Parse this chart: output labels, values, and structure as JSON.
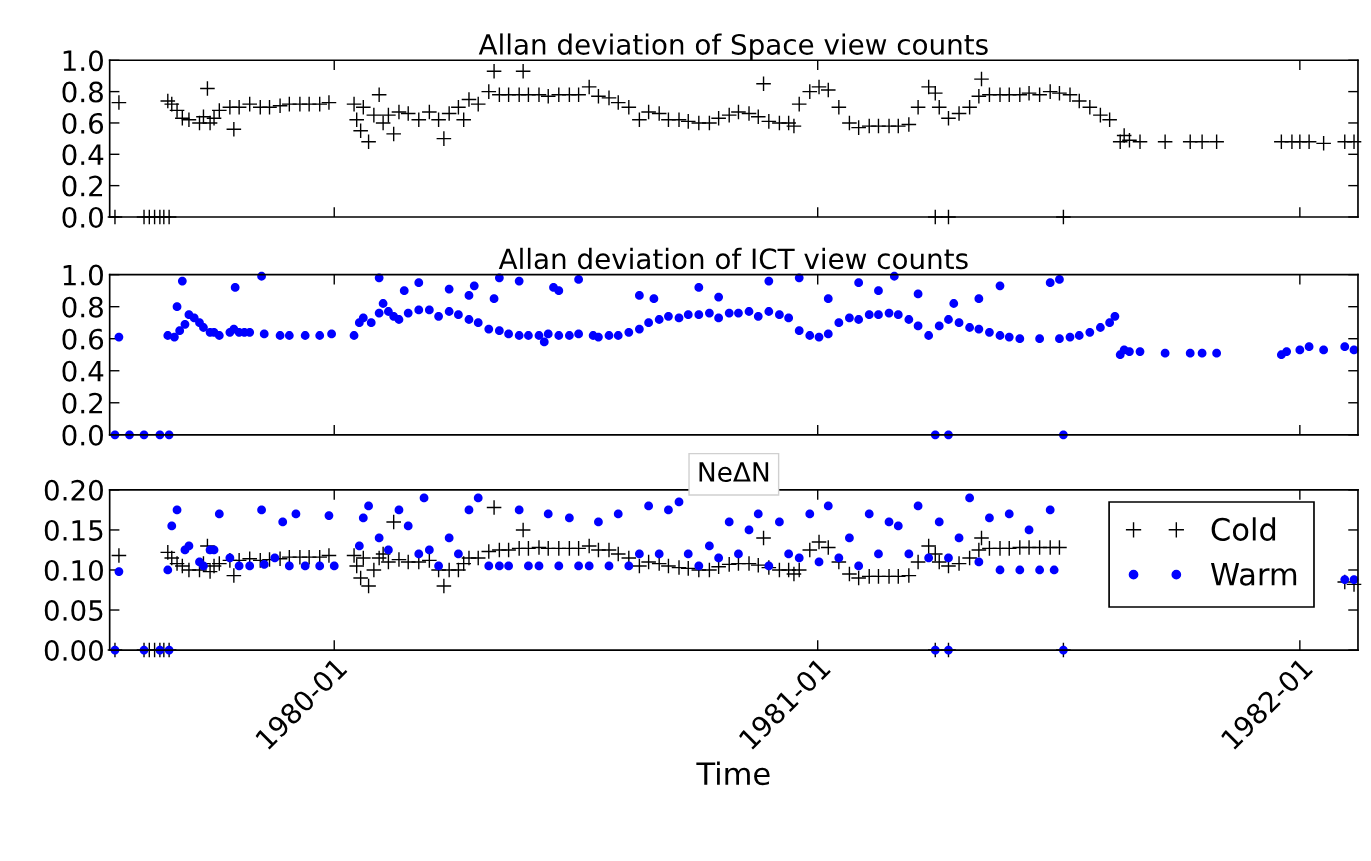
{
  "chart_data": [
    {
      "type": "scatter",
      "title": "Allan deviation of Space view counts",
      "tick_labels": "y",
      "grid": false,
      "xlim": [
        "1979-07-15",
        "1982-02-14"
      ],
      "xticks": [
        {
          "value": "1980-01",
          "label": null
        },
        {
          "value": "1981-01",
          "label": null
        },
        {
          "value": "1982-01",
          "label": null
        }
      ],
      "ylim": [
        0,
        1
      ],
      "yticks": [
        {
          "value": 0,
          "label": "0.0"
        },
        {
          "value": 0.2,
          "label": "0.2"
        },
        {
          "value": 0.4,
          "label": "0.4"
        },
        {
          "value": 0.6,
          "label": "0.6"
        },
        {
          "value": 0.8,
          "label": "0.8"
        },
        {
          "value": 1,
          "label": "1.0"
        }
      ],
      "series": [
        {
          "color": "#000000",
          "marker": "cross",
          "x": [
            "1979-07-19",
            "1979-07-22",
            "1979-08-10",
            "1979-08-14",
            "1979-08-18",
            "1979-08-22",
            "1979-08-25",
            "1979-08-28",
            "1979-08-29",
            "1979-08-31",
            "1979-09-04",
            "1979-09-08",
            "1979-09-13",
            "1979-09-21",
            "1979-09-24",
            "1979-09-27",
            "1979-09-29",
            "1979-10-02",
            "1979-10-06",
            "1979-10-14",
            "1979-10-17",
            "1979-10-21",
            "1979-10-29",
            "1979-11-06",
            "1979-11-13",
            "1979-11-21",
            "1979-11-28",
            "1979-12-06",
            "1979-12-13",
            "1979-12-21",
            "1979-12-28",
            "1980-01-16",
            "1980-01-18",
            "1980-01-21",
            "1980-01-23",
            "1980-01-27",
            "1980-01-31",
            "1980-02-04",
            "1980-02-07",
            "1980-02-11",
            "1980-02-15",
            "1980-02-19",
            "1980-02-26",
            "1980-03-05",
            "1980-03-13",
            "1980-03-20",
            "1980-03-24",
            "1980-03-28",
            "1980-04-04",
            "1980-04-08",
            "1980-04-12",
            "1980-04-19",
            "1980-04-27",
            "1980-05-01",
            "1980-05-05",
            "1980-05-12",
            "1980-05-20",
            "1980-05-23",
            "1980-05-27",
            "1980-06-04",
            "1980-06-11",
            "1980-06-19",
            "1980-06-27",
            "1980-07-04",
            "1980-07-12",
            "1980-07-19",
            "1980-07-27",
            "1980-08-03",
            "1980-08-11",
            "1980-08-19",
            "1980-08-26",
            "1980-09-03",
            "1980-09-10",
            "1980-09-18",
            "1980-09-25",
            "1980-10-03",
            "1980-10-11",
            "1980-10-18",
            "1980-10-26",
            "1980-11-02",
            "1980-11-10",
            "1980-11-17",
            "1980-11-21",
            "1980-11-25",
            "1980-12-03",
            "1980-12-10",
            "1980-12-14",
            "1980-12-18",
            "1980-12-26",
            "1981-01-02",
            "1981-01-09",
            "1981-01-17",
            "1981-01-25",
            "1981-02-01",
            "1981-02-09",
            "1981-02-16",
            "1981-02-24",
            "1981-03-03",
            "1981-03-11",
            "1981-03-18",
            "1981-03-26",
            "1981-03-31",
            "1981-03-31",
            "1981-04-03",
            "1981-04-10",
            "1981-04-10",
            "1981-04-18",
            "1981-04-26",
            "1981-05-03",
            "1981-05-05",
            "1981-05-11",
            "1981-05-19",
            "1981-05-26",
            "1981-06-03",
            "1981-06-10",
            "1981-06-18",
            "1981-06-26",
            "1981-07-03",
            "1981-07-06",
            "1981-07-11",
            "1981-07-18",
            "1981-07-26",
            "1981-08-03",
            "1981-08-10",
            "1981-08-18",
            "1981-08-21",
            "1981-08-25",
            "1981-09-02",
            "1981-09-21",
            "1981-10-10",
            "1981-10-19",
            "1981-10-30",
            "1981-12-18",
            "1981-12-26",
            "1982-01-01",
            "1982-01-08",
            "1982-01-19",
            "1982-02-04",
            "1982-02-11"
          ],
          "values": [
            0,
            0.73,
            0,
            0,
            0,
            0,
            0,
            0.74,
            0,
            0.72,
            0.68,
            0.63,
            0.62,
            0.6,
            0.64,
            0.82,
            0.6,
            0.63,
            0.68,
            0.7,
            0.56,
            0.7,
            0.72,
            0.7,
            0.7,
            0.71,
            0.72,
            0.72,
            0.72,
            0.72,
            0.73,
            0.72,
            0.62,
            0.55,
            0.7,
            0.48,
            0.65,
            0.78,
            0.6,
            0.65,
            0.53,
            0.67,
            0.66,
            0.62,
            0.67,
            0.62,
            0.5,
            0.66,
            0.7,
            0.62,
            0.75,
            0.72,
            0.8,
            0.93,
            0.78,
            0.78,
            0.78,
            0.93,
            0.78,
            0.78,
            0.77,
            0.78,
            0.78,
            0.78,
            0.83,
            0.77,
            0.76,
            0.73,
            0.7,
            0.62,
            0.67,
            0.66,
            0.62,
            0.62,
            0.61,
            0.6,
            0.6,
            0.63,
            0.65,
            0.67,
            0.66,
            0.64,
            0.85,
            0.61,
            0.6,
            0.6,
            0.58,
            0.72,
            0.8,
            0.83,
            0.81,
            0.7,
            0.6,
            0.57,
            0.58,
            0.58,
            0.58,
            0.58,
            0.59,
            0.7,
            0.83,
            0.79,
            0,
            0.7,
            0,
            0.63,
            0.66,
            0.7,
            0.77,
            0.88,
            0.78,
            0.78,
            0.78,
            0.78,
            0.79,
            0.78,
            0.8,
            0.79,
            0,
            0.78,
            0.74,
            0.7,
            0.65,
            0.62,
            0.48,
            0.52,
            0.49,
            0.48,
            0.48,
            0.48,
            0.48,
            0.48,
            0.48,
            0.48,
            0.48,
            0.48,
            0.47,
            0.48,
            0.48
          ]
        }
      ]
    },
    {
      "type": "scatter",
      "title": "Allan deviation of ICT view counts",
      "tick_labels": "y",
      "grid": false,
      "xlim": [
        "1979-07-15",
        "1982-02-14"
      ],
      "xticks": [
        {
          "value": "1980-01",
          "label": null
        },
        {
          "value": "1981-01",
          "label": null
        },
        {
          "value": "1982-01",
          "label": null
        }
      ],
      "ylim": [
        0,
        1
      ],
      "yticks": [
        {
          "value": 0,
          "label": "0.0"
        },
        {
          "value": 0.2,
          "label": "0.2"
        },
        {
          "value": 0.4,
          "label": "0.4"
        },
        {
          "value": 0.6,
          "label": "0.6"
        },
        {
          "value": 0.8,
          "label": "0.8"
        },
        {
          "value": 1,
          "label": "1.0"
        }
      ],
      "series": [
        {
          "color": "#0000ff",
          "marker": "circle",
          "x": [
            "1979-07-19",
            "1979-07-22",
            "1979-07-30",
            "1979-08-10",
            "1979-08-22",
            "1979-08-28",
            "1979-08-29",
            "1979-09-02",
            "1979-09-04",
            "1979-09-06",
            "1979-09-08",
            "1979-09-10",
            "1979-09-13",
            "1979-09-17",
            "1979-09-21",
            "1979-09-24",
            "1979-09-29",
            "1979-10-02",
            "1979-10-06",
            "1979-10-14",
            "1979-10-17",
            "1979-10-18",
            "1979-10-21",
            "1979-10-25",
            "1979-10-29",
            "1979-11-07",
            "1979-11-09",
            "1979-11-21",
            "1979-11-28",
            "1979-12-10",
            "1979-12-21",
            "1979-12-30",
            "1980-01-16",
            "1980-01-20",
            "1980-01-23",
            "1980-01-29",
            "1980-02-04",
            "1980-02-04",
            "1980-02-07",
            "1980-02-11",
            "1980-02-15",
            "1980-02-19",
            "1980-02-23",
            "1980-02-26",
            "1980-03-05",
            "1980-03-05",
            "1980-03-13",
            "1980-03-20",
            "1980-03-28",
            "1980-03-28",
            "1980-04-04",
            "1980-04-12",
            "1980-04-12",
            "1980-04-16",
            "1980-04-19",
            "1980-04-27",
            "1980-05-01",
            "1980-05-05",
            "1980-05-05",
            "1980-05-12",
            "1980-05-20",
            "1980-05-20",
            "1980-05-27",
            "1980-06-04",
            "1980-06-08",
            "1980-06-11",
            "1980-06-15",
            "1980-06-19",
            "1980-06-19",
            "1980-06-27",
            "1980-07-04",
            "1980-07-04",
            "1980-07-15",
            "1980-07-19",
            "1980-07-27",
            "1980-08-03",
            "1980-08-11",
            "1980-08-19",
            "1980-08-19",
            "1980-08-26",
            "1980-08-30",
            "1980-09-03",
            "1980-09-10",
            "1980-09-18",
            "1980-09-25",
            "1980-10-03",
            "1980-10-03",
            "1980-10-11",
            "1980-10-18",
            "1980-10-18",
            "1980-10-26",
            "1980-11-02",
            "1980-11-10",
            "1980-11-17",
            "1980-11-25",
            "1980-11-25",
            "1980-12-03",
            "1980-12-10",
            "1980-12-18",
            "1980-12-18",
            "1980-12-26",
            "1981-01-02",
            "1981-01-09",
            "1981-01-09",
            "1981-01-17",
            "1981-01-25",
            "1981-02-01",
            "1981-02-01",
            "1981-02-09",
            "1981-02-16",
            "1981-02-16",
            "1981-02-24",
            "1981-02-28",
            "1981-03-03",
            "1981-03-11",
            "1981-03-18",
            "1981-03-18",
            "1981-03-26",
            "1981-03-31",
            "1981-04-03",
            "1981-04-10",
            "1981-04-10",
            "1981-04-14",
            "1981-04-18",
            "1981-04-26",
            "1981-05-03",
            "1981-05-03",
            "1981-05-11",
            "1981-05-19",
            "1981-05-19",
            "1981-05-26",
            "1981-06-03",
            "1981-06-18",
            "1981-06-26",
            "1981-07-03",
            "1981-07-03",
            "1981-07-06",
            "1981-07-11",
            "1981-07-18",
            "1981-07-26",
            "1981-08-03",
            "1981-08-10",
            "1981-08-14",
            "1981-08-18",
            "1981-08-21",
            "1981-08-25",
            "1981-09-02",
            "1981-09-21",
            "1981-10-10",
            "1981-10-19",
            "1981-10-30",
            "1981-12-18",
            "1981-12-22",
            "1982-01-01",
            "1982-01-08",
            "1982-01-19",
            "1982-02-04",
            "1982-02-11"
          ],
          "values": [
            0,
            0.61,
            0,
            0,
            0,
            0.62,
            0,
            0.61,
            0.8,
            0.65,
            0.96,
            0.69,
            0.75,
            0.73,
            0.7,
            0.67,
            0.64,
            0.64,
            0.62,
            0.64,
            0.66,
            0.92,
            0.64,
            0.64,
            0.64,
            0.99,
            0.63,
            0.62,
            0.62,
            0.62,
            0.62,
            0.63,
            0.62,
            0.7,
            0.73,
            0.7,
            0.76,
            0.98,
            0.82,
            0.77,
            0.74,
            0.72,
            0.9,
            0.76,
            0.78,
            0.95,
            0.78,
            0.74,
            0.77,
            0.91,
            0.75,
            0.72,
            0.87,
            0.93,
            0.7,
            0.66,
            0.85,
            0.65,
            0.98,
            0.63,
            0.62,
            0.96,
            0.62,
            0.62,
            0.58,
            0.63,
            0.92,
            0.62,
            0.9,
            0.62,
            0.63,
            0.97,
            0.62,
            0.61,
            0.62,
            0.62,
            0.64,
            0.66,
            0.87,
            0.7,
            0.85,
            0.72,
            0.74,
            0.73,
            0.75,
            0.75,
            0.92,
            0.76,
            0.73,
            0.86,
            0.76,
            0.76,
            0.77,
            0.74,
            0.77,
            0.96,
            0.75,
            0.73,
            0.65,
            0.98,
            0.62,
            0.61,
            0.63,
            0.85,
            0.7,
            0.73,
            0.72,
            0.95,
            0.75,
            0.75,
            0.9,
            0.76,
            0.99,
            0.75,
            0.72,
            0.68,
            0.88,
            0.62,
            0,
            0.68,
            0,
            0.72,
            0.82,
            0.7,
            0.67,
            0.66,
            0.85,
            0.64,
            0.62,
            0.93,
            0.61,
            0.6,
            0.6,
            0.95,
            0.6,
            0.97,
            0,
            0.61,
            0.62,
            0.64,
            0.67,
            0.7,
            0.74,
            0.5,
            0.53,
            0.52,
            0.52,
            0.51,
            0.51,
            0.51,
            0.51,
            0.5,
            0.52,
            0.53,
            0.55,
            0.53,
            0.55,
            0.53
          ]
        }
      ]
    },
    {
      "type": "scatter",
      "title": "NeΔN",
      "xlabel": "Time",
      "grid": false,
      "legend": "top right",
      "xlim": [
        "1979-07-15",
        "1982-02-14"
      ],
      "xticks": [
        {
          "value": "1980-01",
          "label": "1980-01"
        },
        {
          "value": "1981-01",
          "label": "1981-01"
        },
        {
          "value": "1982-01",
          "label": "1982-01"
        }
      ],
      "ylim": [
        0,
        0.2
      ],
      "yticks": [
        {
          "value": 0,
          "label": "0.00"
        },
        {
          "value": 0.05,
          "label": "0.05"
        },
        {
          "value": 0.1,
          "label": "0.10"
        },
        {
          "value": 0.15,
          "label": "0.15"
        },
        {
          "value": 0.2,
          "label": "0.20"
        }
      ],
      "series": [
        {
          "name": "Cold",
          "color": "#000000",
          "marker": "cross",
          "x": [
            "1979-07-19",
            "1979-07-22",
            "1979-08-10",
            "1979-08-14",
            "1979-08-18",
            "1979-08-22",
            "1979-08-25",
            "1979-08-28",
            "1979-08-29",
            "1979-08-31",
            "1979-09-04",
            "1979-09-08",
            "1979-09-13",
            "1979-09-21",
            "1979-09-24",
            "1979-09-27",
            "1979-09-29",
            "1979-10-02",
            "1979-10-06",
            "1979-10-14",
            "1979-10-17",
            "1979-10-21",
            "1979-10-29",
            "1979-11-06",
            "1979-11-13",
            "1979-11-21",
            "1979-11-28",
            "1979-12-06",
            "1979-12-13",
            "1979-12-21",
            "1979-12-28",
            "1980-01-16",
            "1980-01-18",
            "1980-01-21",
            "1980-01-23",
            "1980-01-27",
            "1980-01-31",
            "1980-02-04",
            "1980-02-07",
            "1980-02-11",
            "1980-02-15",
            "1980-02-19",
            "1980-02-26",
            "1980-03-05",
            "1980-03-13",
            "1980-03-20",
            "1980-03-24",
            "1980-03-28",
            "1980-04-04",
            "1980-04-08",
            "1980-04-12",
            "1980-04-19",
            "1980-04-27",
            "1980-05-01",
            "1980-05-05",
            "1980-05-12",
            "1980-05-20",
            "1980-05-23",
            "1980-05-27",
            "1980-06-04",
            "1980-06-11",
            "1980-06-19",
            "1980-06-27",
            "1980-07-04",
            "1980-07-12",
            "1980-07-19",
            "1980-07-27",
            "1980-08-03",
            "1980-08-11",
            "1980-08-19",
            "1980-08-26",
            "1980-09-03",
            "1980-09-10",
            "1980-09-18",
            "1980-09-25",
            "1980-10-03",
            "1980-10-11",
            "1980-10-18",
            "1980-10-26",
            "1980-11-02",
            "1980-11-10",
            "1980-11-17",
            "1980-11-21",
            "1980-11-25",
            "1980-12-03",
            "1980-12-10",
            "1980-12-14",
            "1980-12-18",
            "1980-12-26",
            "1981-01-02",
            "1981-01-09",
            "1981-01-17",
            "1981-01-25",
            "1981-02-01",
            "1981-02-09",
            "1981-02-16",
            "1981-02-24",
            "1981-03-03",
            "1981-03-11",
            "1981-03-18",
            "1981-03-26",
            "1981-03-31",
            "1981-03-31",
            "1981-04-03",
            "1981-04-10",
            "1981-04-10",
            "1981-04-18",
            "1981-04-26",
            "1981-05-03",
            "1981-05-05",
            "1981-05-11",
            "1981-05-19",
            "1981-05-26",
            "1981-06-03",
            "1981-06-10",
            "1981-06-18",
            "1981-06-26",
            "1981-07-03",
            "1981-07-06",
            "1982-02-04",
            "1982-02-11"
          ],
          "values": [
            0,
            0.118,
            0,
            0,
            0,
            0,
            0,
            0.122,
            0,
            0.115,
            0.108,
            0.105,
            0.1,
            0.1,
            0.108,
            0.13,
            0.098,
            0.105,
            0.108,
            0.112,
            0.093,
            0.112,
            0.114,
            0.112,
            0.113,
            0.114,
            0.116,
            0.116,
            0.116,
            0.116,
            0.118,
            0.118,
            0.105,
            0.09,
            0.115,
            0.08,
            0.1,
            0.115,
            0.12,
            0.11,
            0.16,
            0.113,
            0.11,
            0.11,
            0.112,
            0.1,
            0.08,
            0.1,
            0.1,
            0.108,
            0.115,
            0.115,
            0.123,
            0.178,
            0.125,
            0.125,
            0.127,
            0.15,
            0.127,
            0.128,
            0.127,
            0.127,
            0.127,
            0.127,
            0.13,
            0.125,
            0.125,
            0.12,
            0.115,
            0.105,
            0.11,
            0.108,
            0.105,
            0.103,
            0.102,
            0.1,
            0.1,
            0.104,
            0.107,
            0.108,
            0.108,
            0.106,
            0.14,
            0.103,
            0.1,
            0.1,
            0.095,
            0.1,
            0.125,
            0.135,
            0.128,
            0.11,
            0.095,
            0.09,
            0.092,
            0.092,
            0.092,
            0.092,
            0.093,
            0.11,
            0.13,
            0.12,
            0,
            0.11,
            0,
            0.105,
            0.108,
            0.115,
            0.125,
            0.14,
            0.127,
            0.127,
            0.127,
            0.128,
            0.128,
            0.128,
            0.128,
            0.128,
            0,
            0.085,
            0.082
          ]
        },
        {
          "name": "Warm",
          "color": "#0000ff",
          "marker": "circle",
          "x": [
            "1979-07-19",
            "1979-07-22",
            "1979-08-10",
            "1979-08-22",
            "1979-08-28",
            "1979-08-29",
            "1979-08-31",
            "1979-09-04",
            "1979-09-10",
            "1979-09-13",
            "1979-09-21",
            "1979-09-24",
            "1979-09-29",
            "1979-10-02",
            "1979-10-06",
            "1979-10-14",
            "1979-10-21",
            "1979-10-29",
            "1979-11-07",
            "1979-11-09",
            "1979-11-17",
            "1979-11-23",
            "1979-11-28",
            "1979-12-03",
            "1979-12-10",
            "1979-12-21",
            "1979-12-28",
            "1980-01-01",
            "1980-01-20",
            "1980-01-23",
            "1980-01-27",
            "1980-02-04",
            "1980-02-11",
            "1980-02-19",
            "1980-02-26",
            "1980-03-05",
            "1980-03-09",
            "1980-03-13",
            "1980-03-20",
            "1980-03-28",
            "1980-04-04",
            "1980-04-12",
            "1980-04-19",
            "1980-04-27",
            "1980-05-05",
            "1980-05-12",
            "1980-05-20",
            "1980-05-27",
            "1980-06-04",
            "1980-06-11",
            "1980-06-19",
            "1980-06-27",
            "1980-07-04",
            "1980-07-12",
            "1980-07-19",
            "1980-07-27",
            "1980-08-03",
            "1980-08-11",
            "1980-08-19",
            "1980-08-26",
            "1980-09-03",
            "1980-09-10",
            "1980-09-18",
            "1980-09-25",
            "1980-10-03",
            "1980-10-11",
            "1980-10-18",
            "1980-10-26",
            "1980-11-02",
            "1980-11-10",
            "1980-11-17",
            "1980-11-25",
            "1980-12-03",
            "1980-12-10",
            "1980-12-18",
            "1980-12-26",
            "1981-01-02",
            "1981-01-09",
            "1981-01-17",
            "1981-01-25",
            "1981-02-01",
            "1981-02-09",
            "1981-02-16",
            "1981-02-24",
            "1981-03-03",
            "1981-03-11",
            "1981-03-18",
            "1981-03-26",
            "1981-03-31",
            "1981-04-03",
            "1981-04-10",
            "1981-04-10",
            "1981-04-18",
            "1981-04-26",
            "1981-05-03",
            "1981-05-11",
            "1981-05-19",
            "1981-05-26",
            "1981-06-03",
            "1981-06-10",
            "1981-06-18",
            "1981-06-26",
            "1981-06-29",
            "1981-07-06",
            "1982-02-04",
            "1982-02-11"
          ],
          "values": [
            0,
            0.098,
            0,
            0,
            0.1,
            0,
            0.155,
            0.175,
            0.125,
            0.13,
            0.11,
            0.105,
            0.125,
            0.125,
            0.17,
            0.115,
            0.105,
            0.105,
            0.175,
            0.107,
            0.115,
            0.16,
            0.105,
            0.17,
            0.105,
            0.105,
            0.168,
            0.105,
            0.13,
            0.165,
            0.18,
            0.14,
            0.125,
            0.175,
            0.155,
            0.12,
            0.19,
            0.125,
            0.105,
            0.14,
            0.12,
            0.175,
            0.19,
            0.105,
            0.105,
            0.105,
            0.175,
            0.105,
            0.105,
            0.17,
            0.105,
            0.165,
            0.105,
            0.105,
            0.16,
            0.105,
            0.17,
            0.105,
            0.12,
            0.18,
            0.12,
            0.175,
            0.185,
            0.12,
            0.105,
            0.13,
            0.115,
            0.16,
            0.12,
            0.15,
            0.17,
            0.105,
            0.16,
            0.12,
            0.115,
            0.17,
            0.11,
            0.18,
            0.115,
            0.14,
            0.105,
            0.17,
            0.12,
            0.16,
            0.155,
            0.12,
            0.18,
            0.115,
            0,
            0.16,
            0,
            0.115,
            0.14,
            0.19,
            0.11,
            0.165,
            0.1,
            0.17,
            0.1,
            0.15,
            0.1,
            0.175,
            0.1,
            0,
            0.088,
            0.088
          ]
        }
      ]
    }
  ]
}
